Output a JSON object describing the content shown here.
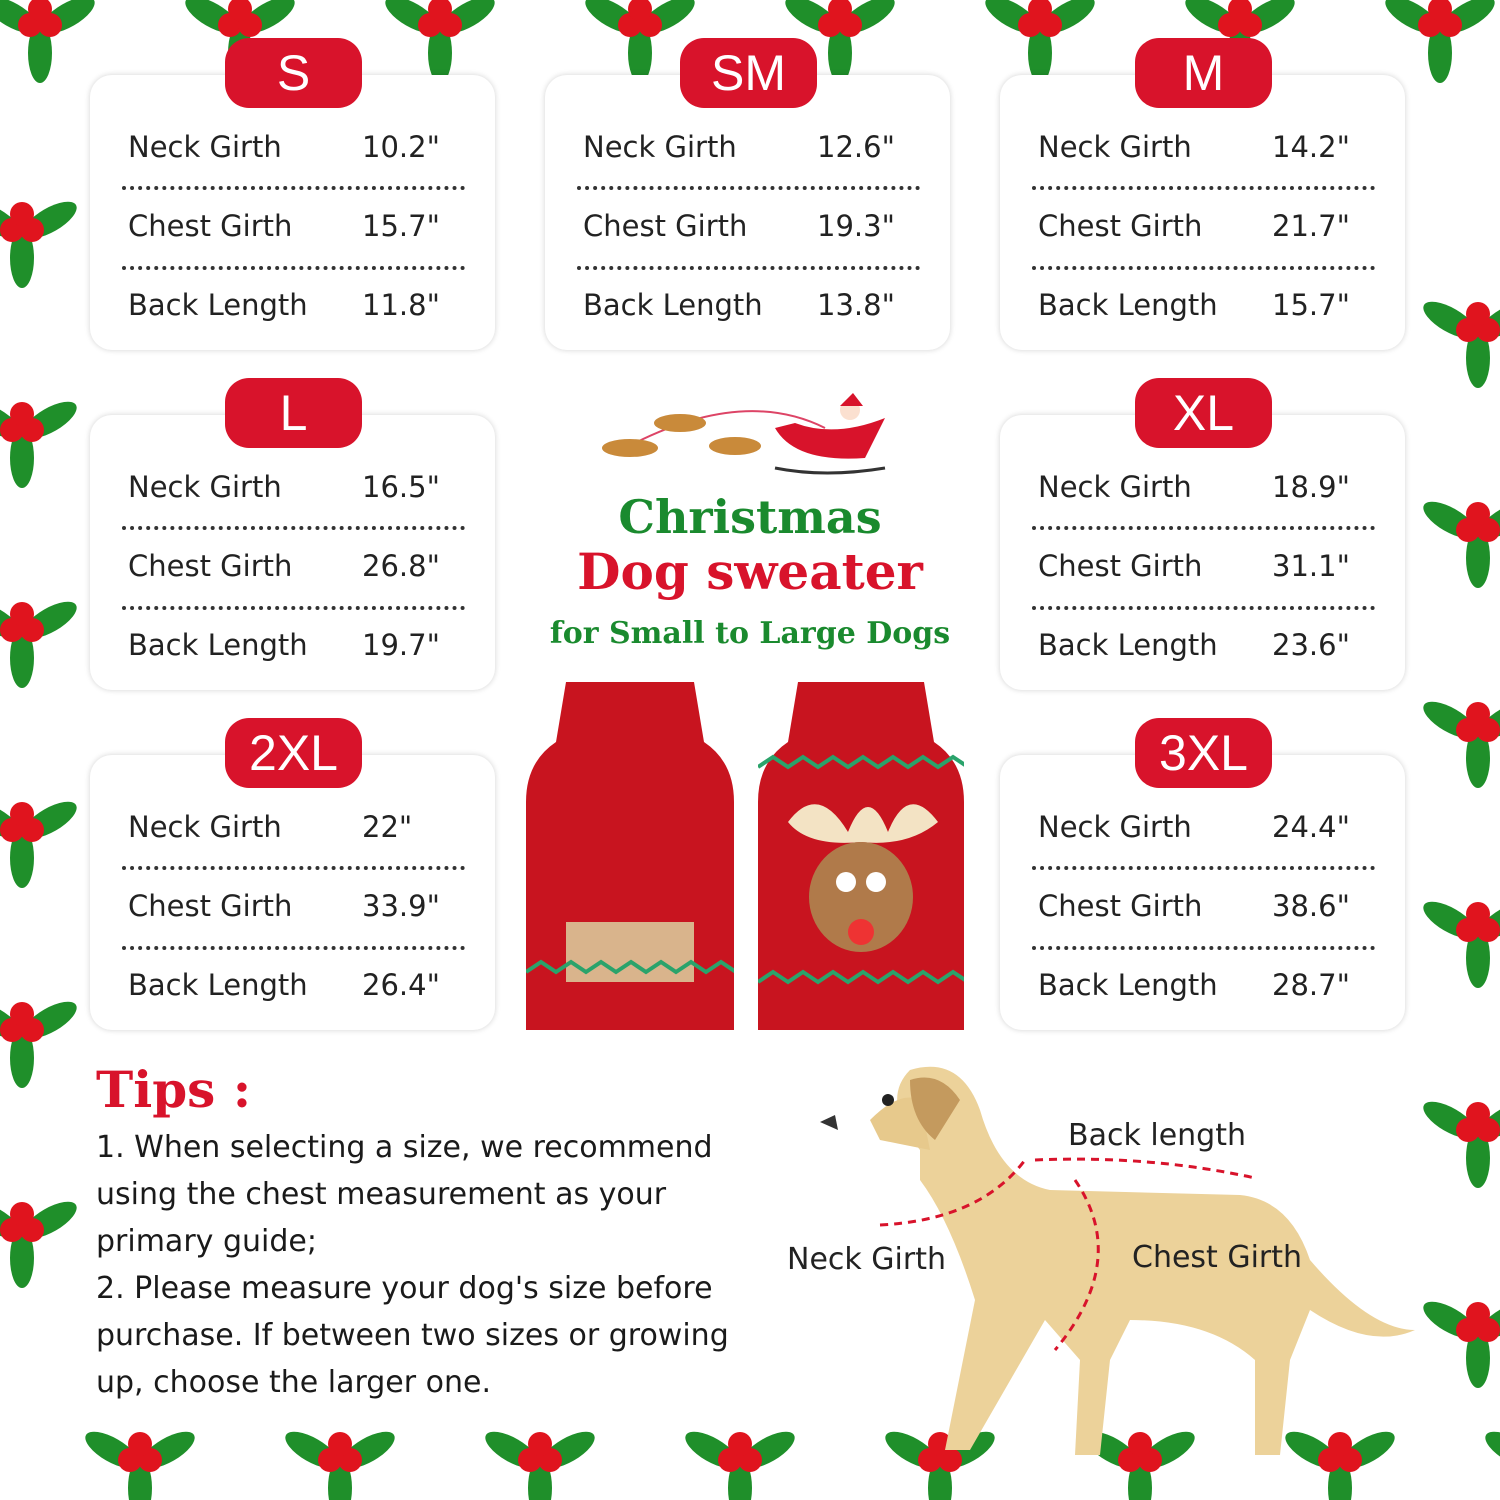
{
  "sizes": [
    {
      "size": "S",
      "rows": [
        {
          "label": "Neck Girth",
          "value": "10.2\""
        },
        {
          "label": "Chest Girth",
          "value": "15.7\""
        },
        {
          "label": "Back Length",
          "value": "11.8\""
        }
      ]
    },
    {
      "size": "SM",
      "rows": [
        {
          "label": "Neck Girth",
          "value": "12.6\""
        },
        {
          "label": "Chest Girth",
          "value": "19.3\""
        },
        {
          "label": "Back Length",
          "value": "13.8\""
        }
      ]
    },
    {
      "size": "M",
      "rows": [
        {
          "label": "Neck Girth",
          "value": "14.2\""
        },
        {
          "label": "Chest Girth",
          "value": "21.7\""
        },
        {
          "label": "Back Length",
          "value": "15.7\""
        }
      ]
    },
    {
      "size": "L",
      "rows": [
        {
          "label": "Neck Girth",
          "value": "16.5\""
        },
        {
          "label": "Chest Girth",
          "value": "26.8\""
        },
        {
          "label": "Back Length",
          "value": "19.7\""
        }
      ]
    },
    {
      "size": "XL",
      "rows": [
        {
          "label": "Neck Girth",
          "value": "18.9\""
        },
        {
          "label": "Chest Girth",
          "value": "31.1\""
        },
        {
          "label": "Back Length",
          "value": "23.6\""
        }
      ]
    },
    {
      "size": "2XL",
      "rows": [
        {
          "label": "Neck Girth",
          "value": "22\""
        },
        {
          "label": "Chest Girth",
          "value": "33.9\""
        },
        {
          "label": "Back Length",
          "value": "26.4\""
        }
      ]
    },
    {
      "size": "3XL",
      "rows": [
        {
          "label": "Neck Girth",
          "value": "24.4\""
        },
        {
          "label": "Chest Girth",
          "value": "38.6\""
        },
        {
          "label": "Back Length",
          "value": "28.7\""
        }
      ]
    }
  ],
  "title": {
    "line1": "Christmas",
    "line2": "Dog sweater",
    "line3": "for Small to Large Dogs"
  },
  "tips": {
    "heading": "Tips :",
    "items": [
      "1. When selecting a size, we recommend using the chest measurement as your  primary guide;",
      "2. Please measure your dog's size before purchase. If between two sizes or growing up, choose the larger one."
    ]
  },
  "diagram": {
    "back": "Back length",
    "neck": "Neck Girth",
    "chest": "Chest Girth"
  },
  "colors": {
    "red": "#d8132b",
    "green": "#1a8a2e",
    "holly_green": "#1f8f2a"
  }
}
